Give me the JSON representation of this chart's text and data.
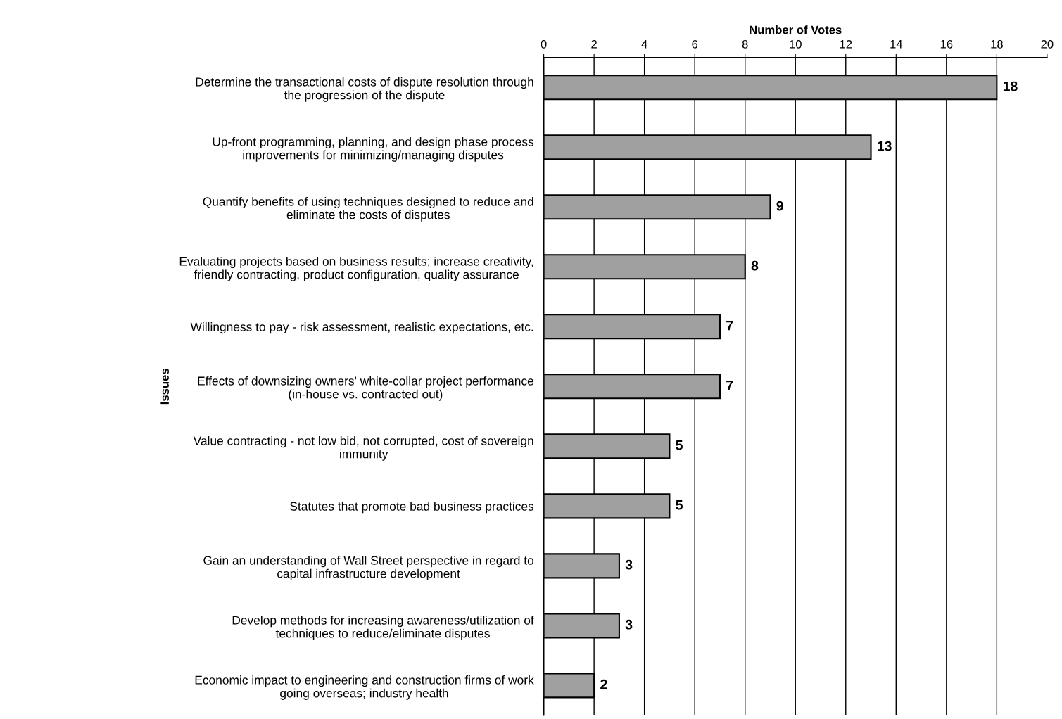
{
  "chart_data": {
    "type": "bar",
    "orientation": "horizontal",
    "xlabel": "Number of Votes",
    "ylabel": "Issues",
    "categories": [
      "Determine the transactional costs of dispute resolution through\nthe progression of the dispute",
      "Up-front programming, planning, and design phase process\nimprovements for minimizing/managing disputes",
      "Quantify benefits of using techniques designed to reduce and\neliminate the costs of disputes",
      "Evaluating projects based on business results; increase creativity,\nfriendly contracting, product configuration, quality assurance",
      "Willingness to pay - risk assessment, realistic expectations, etc.",
      "Effects of downsizing owners' white-collar project performance\n(in-house vs. contracted out)",
      "Value contracting - not low bid, not corrupted, cost of sovereign\nimmunity",
      "Statutes that promote bad business practices",
      "Gain an understanding of Wall Street perspective in regard to\ncapital infrastructure development",
      "Develop methods for increasing awareness/utilization of\ntechniques to reduce/eliminate disputes",
      "Economic impact to engineering and construction firms of work\ngoing overseas; industry health"
    ],
    "values": [
      18,
      13,
      9,
      8,
      7,
      7,
      5,
      5,
      3,
      3,
      2
    ],
    "color": "#a0a0a0",
    "xlim": [
      0,
      20
    ],
    "xticks": [
      0,
      2,
      4,
      6,
      8,
      10,
      12,
      14,
      16,
      18,
      20
    ],
    "grid": "x",
    "data_labels": true,
    "legend": false
  }
}
